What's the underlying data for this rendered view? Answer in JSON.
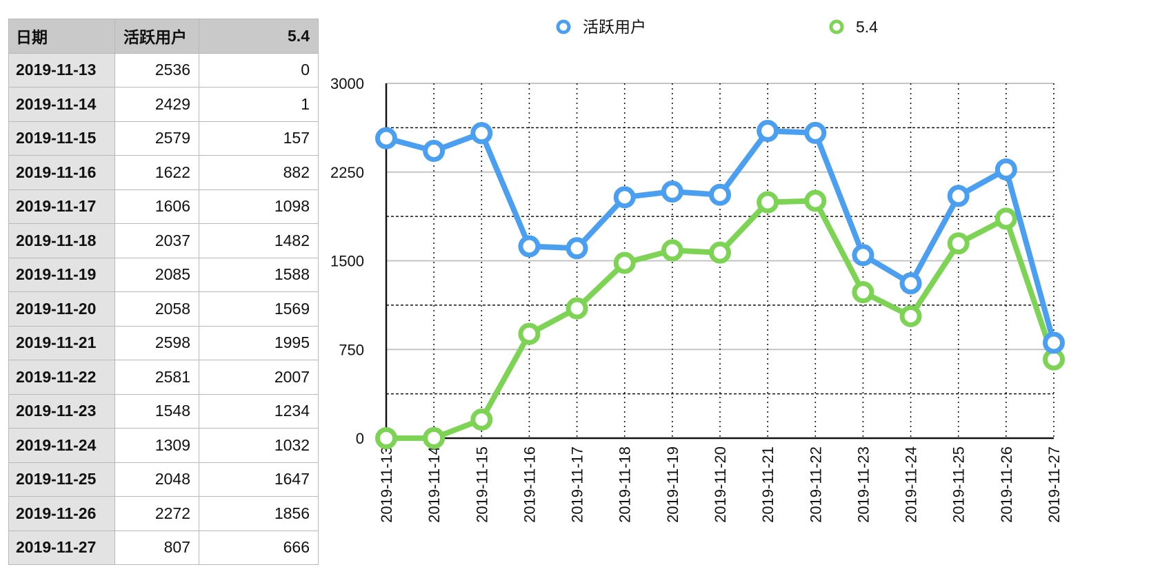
{
  "table": {
    "headers": [
      "日期",
      "活跃用户",
      "5.4"
    ],
    "rows": [
      [
        "2019-11-13",
        "2536",
        "0"
      ],
      [
        "2019-11-14",
        "2429",
        "1"
      ],
      [
        "2019-11-15",
        "2579",
        "157"
      ],
      [
        "2019-11-16",
        "1622",
        "882"
      ],
      [
        "2019-11-17",
        "1606",
        "1098"
      ],
      [
        "2019-11-18",
        "2037",
        "1482"
      ],
      [
        "2019-11-19",
        "2085",
        "1588"
      ],
      [
        "2019-11-20",
        "2058",
        "1569"
      ],
      [
        "2019-11-21",
        "2598",
        "1995"
      ],
      [
        "2019-11-22",
        "2581",
        "2007"
      ],
      [
        "2019-11-23",
        "1548",
        "1234"
      ],
      [
        "2019-11-24",
        "1309",
        "1032"
      ],
      [
        "2019-11-25",
        "2048",
        "1647"
      ],
      [
        "2019-11-26",
        "2272",
        "1856"
      ],
      [
        "2019-11-27",
        "807",
        "666"
      ]
    ]
  },
  "chart_data": {
    "type": "line",
    "categories": [
      "2019-11-13",
      "2019-11-14",
      "2019-11-15",
      "2019-11-16",
      "2019-11-17",
      "2019-11-18",
      "2019-11-19",
      "2019-11-20",
      "2019-11-21",
      "2019-11-22",
      "2019-11-23",
      "2019-11-24",
      "2019-11-25",
      "2019-11-26",
      "2019-11-27"
    ],
    "series": [
      {
        "name": "活跃用户",
        "color": "#4a9ff0",
        "values": [
          2536,
          2429,
          2579,
          1622,
          1606,
          2037,
          2085,
          2058,
          2598,
          2581,
          1548,
          1309,
          2048,
          2272,
          807
        ]
      },
      {
        "name": "5.4",
        "color": "#7dd454",
        "values": [
          0,
          1,
          157,
          882,
          1098,
          1482,
          1588,
          1569,
          1995,
          2007,
          1234,
          1032,
          1647,
          1856,
          666
        ]
      }
    ],
    "ylim": [
      0,
      3000
    ],
    "yticks": [
      0,
      750,
      1500,
      2250,
      3000
    ],
    "grid": true,
    "legend": "top"
  }
}
